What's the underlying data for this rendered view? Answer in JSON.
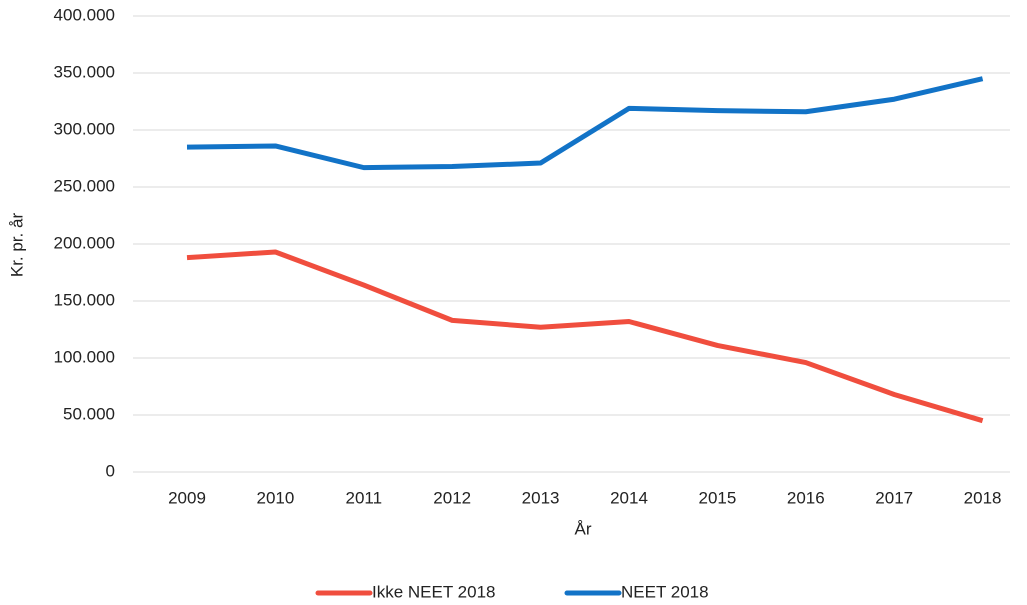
{
  "chart_data": {
    "type": "line",
    "xlabel": "År",
    "ylabel": "Kr. pr. år",
    "categories": [
      "2009",
      "2010",
      "2011",
      "2012",
      "2013",
      "2014",
      "2015",
      "2016",
      "2017",
      "2018"
    ],
    "series": [
      {
        "name": "Ikke NEET 2018",
        "color": "#f04e3e",
        "values": [
          188000,
          193000,
          164000,
          133000,
          127000,
          132000,
          111000,
          96000,
          68000,
          45000
        ]
      },
      {
        "name": "NEET 2018",
        "color": "#1273c7",
        "values": [
          285000,
          286000,
          267000,
          268000,
          271000,
          319000,
          317000,
          316000,
          327000,
          345000
        ]
      }
    ],
    "ylim": [
      0,
      400000
    ],
    "yticks": [
      0,
      {
        "value": 50000,
        "label": "50.000"
      },
      {
        "value": 100000,
        "label": "100.000"
      },
      {
        "value": 150000,
        "label": "150.000"
      },
      {
        "value": 200000,
        "label": "200.000"
      },
      {
        "value": 250000,
        "label": "250.000"
      },
      {
        "value": 300000,
        "label": "300.000"
      },
      {
        "value": 350000,
        "label": "350.000"
      },
      {
        "value": 400000,
        "label": "400.000"
      }
    ],
    "grid": true,
    "legend": "bottom"
  }
}
